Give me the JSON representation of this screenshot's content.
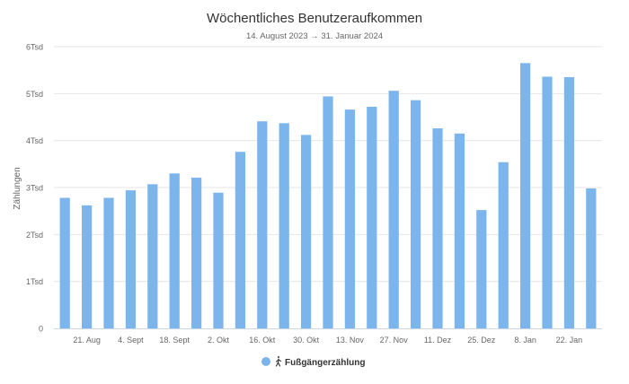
{
  "chart_data": {
    "type": "bar",
    "title": "Wöchentliches Benutzeraufkommen",
    "subtitle": "14. August 2023 → 31. Januar 2024",
    "ylabel": "Zählungen",
    "ylim": [
      0,
      6000
    ],
    "yticks": [
      {
        "value": 0,
        "label": "0"
      },
      {
        "value": 1000,
        "label": "1Tsd"
      },
      {
        "value": 2000,
        "label": "2Tsd"
      },
      {
        "value": 3000,
        "label": "3Tsd"
      },
      {
        "value": 4000,
        "label": "4Tsd"
      },
      {
        "value": 5000,
        "label": "5Tsd"
      },
      {
        "value": 6000,
        "label": "6Tsd"
      }
    ],
    "xtick_labels": [
      {
        "index": 1,
        "label": "21. Aug"
      },
      {
        "index": 3,
        "label": "4. Sept"
      },
      {
        "index": 5,
        "label": "18. Sept"
      },
      {
        "index": 7,
        "label": "2. Okt"
      },
      {
        "index": 9,
        "label": "16. Okt"
      },
      {
        "index": 11,
        "label": "30. Okt"
      },
      {
        "index": 13,
        "label": "13. Nov"
      },
      {
        "index": 15,
        "label": "27. Nov"
      },
      {
        "index": 17,
        "label": "11. Dez"
      },
      {
        "index": 19,
        "label": "25. Dez"
      },
      {
        "index": 21,
        "label": "8. Jan"
      },
      {
        "index": 23,
        "label": "22. Jan"
      }
    ],
    "series": [
      {
        "name": "Fußgängerzählung",
        "color": "#7cb5ec",
        "values": [
          2780,
          2620,
          2780,
          2940,
          3070,
          3300,
          3210,
          2890,
          3760,
          4410,
          4370,
          4120,
          4940,
          4660,
          4720,
          5060,
          4860,
          4260,
          4150,
          2520,
          3540,
          5650,
          5360,
          5350,
          2980
        ]
      }
    ],
    "legend": {
      "position": "bottom-center",
      "icon": "pedestrian-icon"
    },
    "grid": true
  }
}
